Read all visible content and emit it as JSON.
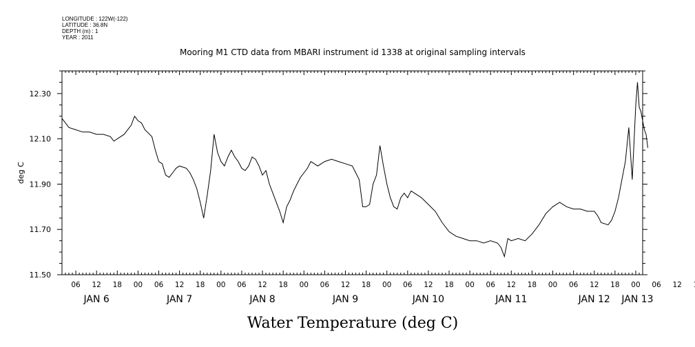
{
  "header": {
    "longitude": "LONGITUDE : 122W(-122)",
    "latitude": "LATITUDE : 36.8N",
    "depth": "DEPTH (m) : 1",
    "year": "YEAR : 2011"
  },
  "chart_data": {
    "type": "line",
    "title": "Mooring M1 CTD data from MBARI instrument id 1338 at original sampling intervals",
    "xlabel": "Water Temperature (deg C)",
    "ylabel": "deg C",
    "grid": false,
    "ylim": [
      11.5,
      12.4
    ],
    "y_ticks": [
      "11.50",
      "11.70",
      "11.90",
      "12.10",
      "12.30"
    ],
    "x_range_hours": [
      2,
      170
    ],
    "x_hour_ticks": [
      "06",
      "12",
      "18",
      "00",
      "06",
      "12",
      "18",
      "00",
      "06",
      "12",
      "18",
      "00",
      "06",
      "12",
      "18",
      "00",
      "06",
      "12",
      "18",
      "00",
      "06",
      "12",
      "18",
      "00",
      "06",
      "12",
      "18",
      "00",
      "06",
      "12",
      "18",
      "00"
    ],
    "x_day_labels": [
      "JAN 6",
      "JAN 7",
      "JAN 8",
      "JAN 9",
      "JAN 10",
      "JAN 11",
      "JAN 12",
      "JAN 13"
    ],
    "series": [
      {
        "points": [
          [
            "2011-01-06 02:00",
            12.19
          ],
          [
            "2011-01-06 03:00",
            12.17
          ],
          [
            "2011-01-06 04:00",
            12.15
          ],
          [
            "2011-01-06 06:00",
            12.14
          ],
          [
            "2011-01-06 08:00",
            12.13
          ],
          [
            "2011-01-06 10:00",
            12.13
          ],
          [
            "2011-01-06 12:00",
            12.12
          ],
          [
            "2011-01-06 14:00",
            12.12
          ],
          [
            "2011-01-06 16:00",
            12.11
          ],
          [
            "2011-01-06 17:00",
            12.09
          ],
          [
            "2011-01-06 18:00",
            12.1
          ],
          [
            "2011-01-06 20:00",
            12.12
          ],
          [
            "2011-01-06 22:00",
            12.16
          ],
          [
            "2011-01-06 23:00",
            12.2
          ],
          [
            "2011-01-07 00:00",
            12.18
          ],
          [
            "2011-01-07 01:00",
            12.17
          ],
          [
            "2011-01-07 02:00",
            12.14
          ],
          [
            "2011-01-07 04:00",
            12.11
          ],
          [
            "2011-01-07 05:00",
            12.05
          ],
          [
            "2011-01-07 06:00",
            12.0
          ],
          [
            "2011-01-07 07:00",
            11.99
          ],
          [
            "2011-01-07 08:00",
            11.94
          ],
          [
            "2011-01-07 09:00",
            11.93
          ],
          [
            "2011-01-07 10:00",
            11.95
          ],
          [
            "2011-01-07 11:00",
            11.97
          ],
          [
            "2011-01-07 12:00",
            11.98
          ],
          [
            "2011-01-07 14:00",
            11.97
          ],
          [
            "2011-01-07 15:00",
            11.95
          ],
          [
            "2011-01-07 16:00",
            11.92
          ],
          [
            "2011-01-07 17:00",
            11.88
          ],
          [
            "2011-01-07 18:00",
            11.82
          ],
          [
            "2011-01-07 19:00",
            11.75
          ],
          [
            "2011-01-07 20:00",
            11.85
          ],
          [
            "2011-01-07 21:00",
            11.96
          ],
          [
            "2011-01-07 22:00",
            12.12
          ],
          [
            "2011-01-07 23:00",
            12.04
          ],
          [
            "2011-01-08 00:00",
            12.0
          ],
          [
            "2011-01-08 01:00",
            11.98
          ],
          [
            "2011-01-08 02:00",
            12.02
          ],
          [
            "2011-01-08 03:00",
            12.05
          ],
          [
            "2011-01-08 04:00",
            12.02
          ],
          [
            "2011-01-08 05:00",
            12.0
          ],
          [
            "2011-01-08 06:00",
            11.97
          ],
          [
            "2011-01-08 07:00",
            11.96
          ],
          [
            "2011-01-08 08:00",
            11.98
          ],
          [
            "2011-01-08 09:00",
            12.02
          ],
          [
            "2011-01-08 10:00",
            12.01
          ],
          [
            "2011-01-08 11:00",
            11.98
          ],
          [
            "2011-01-08 12:00",
            11.94
          ],
          [
            "2011-01-08 13:00",
            11.96
          ],
          [
            "2011-01-08 14:00",
            11.9
          ],
          [
            "2011-01-08 15:00",
            11.86
          ],
          [
            "2011-01-08 16:00",
            11.82
          ],
          [
            "2011-01-08 17:00",
            11.78
          ],
          [
            "2011-01-08 18:00",
            11.73
          ],
          [
            "2011-01-08 19:00",
            11.8
          ],
          [
            "2011-01-08 20:00",
            11.83
          ],
          [
            "2011-01-08 21:00",
            11.87
          ],
          [
            "2011-01-08 22:00",
            11.9
          ],
          [
            "2011-01-08 23:00",
            11.93
          ],
          [
            "2011-01-09 00:00",
            11.95
          ],
          [
            "2011-01-09 01:00",
            11.97
          ],
          [
            "2011-01-09 02:00",
            12.0
          ],
          [
            "2011-01-09 04:00",
            11.98
          ],
          [
            "2011-01-09 06:00",
            12.0
          ],
          [
            "2011-01-09 08:00",
            12.01
          ],
          [
            "2011-01-09 10:00",
            12.0
          ],
          [
            "2011-01-09 12:00",
            11.99
          ],
          [
            "2011-01-09 14:00",
            11.98
          ],
          [
            "2011-01-09 15:00",
            11.95
          ],
          [
            "2011-01-09 16:00",
            11.92
          ],
          [
            "2011-01-09 17:00",
            11.8
          ],
          [
            "2011-01-09 18:00",
            11.8
          ],
          [
            "2011-01-09 19:00",
            11.81
          ],
          [
            "2011-01-09 20:00",
            11.9
          ],
          [
            "2011-01-09 21:00",
            11.94
          ],
          [
            "2011-01-09 22:00",
            12.07
          ],
          [
            "2011-01-09 23:00",
            11.98
          ],
          [
            "2011-01-10 00:00",
            11.9
          ],
          [
            "2011-01-10 01:00",
            11.84
          ],
          [
            "2011-01-10 02:00",
            11.8
          ],
          [
            "2011-01-10 03:00",
            11.79
          ],
          [
            "2011-01-10 04:00",
            11.84
          ],
          [
            "2011-01-10 05:00",
            11.86
          ],
          [
            "2011-01-10 06:00",
            11.84
          ],
          [
            "2011-01-10 07:00",
            11.87
          ],
          [
            "2011-01-10 08:00",
            11.86
          ],
          [
            "2011-01-10 10:00",
            11.84
          ],
          [
            "2011-01-10 12:00",
            11.81
          ],
          [
            "2011-01-10 14:00",
            11.78
          ],
          [
            "2011-01-10 16:00",
            11.73
          ],
          [
            "2011-01-10 18:00",
            11.69
          ],
          [
            "2011-01-10 20:00",
            11.67
          ],
          [
            "2011-01-10 22:00",
            11.66
          ],
          [
            "2011-01-11 00:00",
            11.65
          ],
          [
            "2011-01-11 02:00",
            11.65
          ],
          [
            "2011-01-11 04:00",
            11.64
          ],
          [
            "2011-01-11 06:00",
            11.65
          ],
          [
            "2011-01-11 08:00",
            11.64
          ],
          [
            "2011-01-11 09:00",
            11.62
          ],
          [
            "2011-01-11 10:00",
            11.58
          ],
          [
            "2011-01-11 11:00",
            11.66
          ],
          [
            "2011-01-11 12:00",
            11.65
          ],
          [
            "2011-01-11 14:00",
            11.66
          ],
          [
            "2011-01-11 16:00",
            11.65
          ],
          [
            "2011-01-11 18:00",
            11.68
          ],
          [
            "2011-01-11 20:00",
            11.72
          ],
          [
            "2011-01-11 22:00",
            11.77
          ],
          [
            "2011-01-12 00:00",
            11.8
          ],
          [
            "2011-01-12 02:00",
            11.82
          ],
          [
            "2011-01-12 04:00",
            11.8
          ],
          [
            "2011-01-12 06:00",
            11.79
          ],
          [
            "2011-01-12 08:00",
            11.79
          ],
          [
            "2011-01-12 10:00",
            11.78
          ],
          [
            "2011-01-12 12:00",
            11.78
          ],
          [
            "2011-01-12 13:00",
            11.76
          ],
          [
            "2011-01-12 14:00",
            11.73
          ],
          [
            "2011-01-12 16:00",
            11.72
          ],
          [
            "2011-01-12 17:00",
            11.74
          ],
          [
            "2011-01-12 18:00",
            11.78
          ],
          [
            "2011-01-12 19:00",
            11.84
          ],
          [
            "2011-01-12 20:00",
            11.92
          ],
          [
            "2011-01-12 21:00",
            12.0
          ],
          [
            "2011-01-12 22:00",
            12.15
          ],
          [
            "2011-01-12 23:00",
            11.92
          ],
          [
            "2011-01-13 00:00",
            12.25
          ],
          [
            "2011-01-13 00:30",
            12.35
          ],
          [
            "2011-01-13 01:00",
            12.24
          ],
          [
            "2011-01-13 01:30",
            12.22
          ],
          [
            "2011-01-13 02:00",
            12.18
          ],
          [
            "2011-01-13 02:30",
            12.14
          ],
          [
            "2011-01-13 03:00",
            12.12
          ],
          [
            "2011-01-13 03:30",
            12.06
          ]
        ]
      }
    ]
  }
}
